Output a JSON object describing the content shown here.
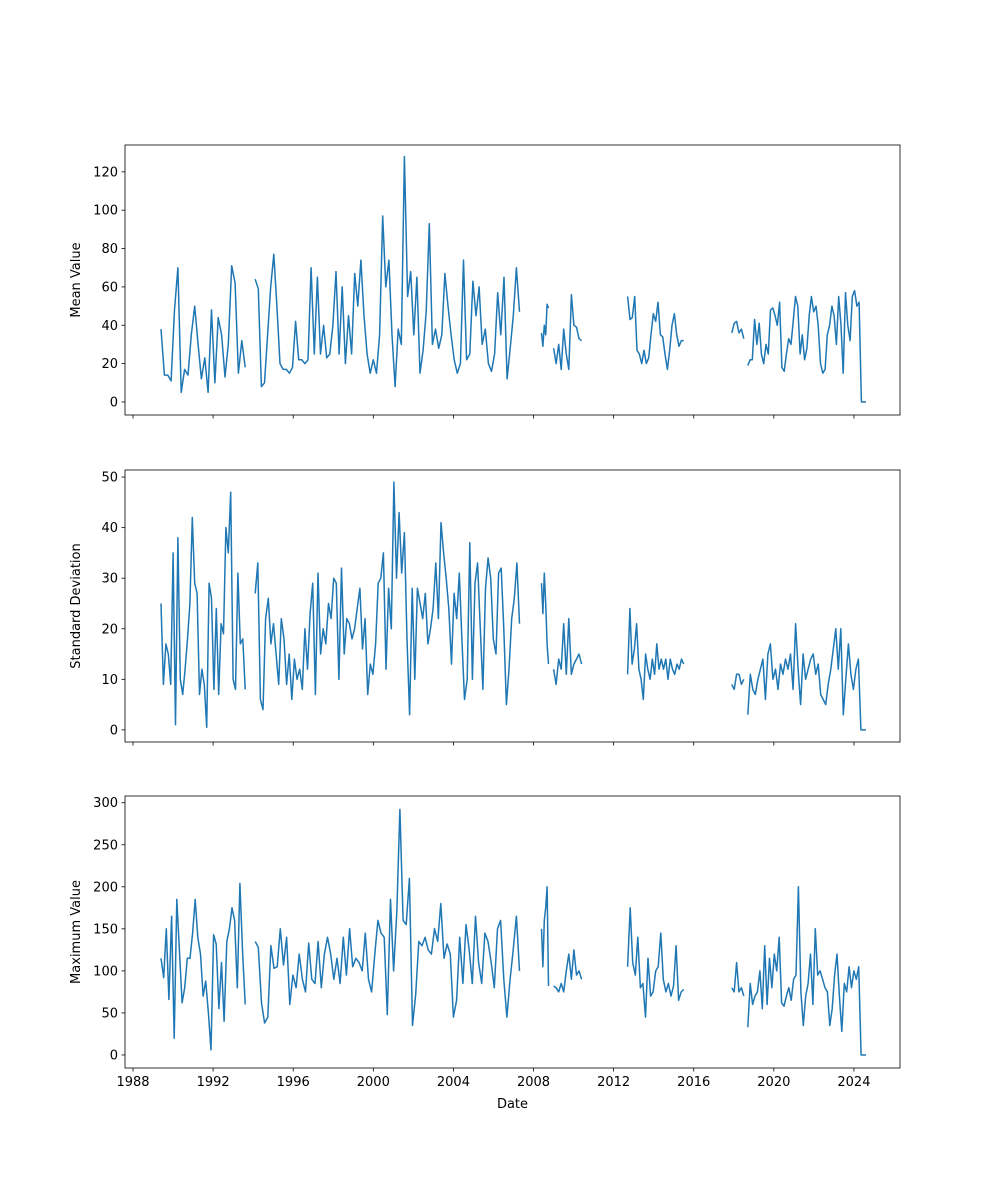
{
  "chart_data": [
    {
      "type": "line",
      "ylabel": "Mean Value",
      "xlabel": "",
      "ylim": [
        -6.8,
        134
      ],
      "xlim": [
        1987.6,
        2026.3
      ],
      "yticks": [
        0,
        20,
        40,
        60,
        80,
        100,
        120
      ],
      "color": "#1f77b4",
      "segments": [
        {
          "start": 1989.4,
          "end": 1993.6,
          "values": [
            38,
            14,
            14,
            11,
            48,
            70,
            5,
            17,
            14,
            35,
            50,
            30,
            12,
            23,
            5,
            48,
            10,
            44,
            35,
            13,
            30,
            71,
            62,
            15,
            32,
            18
          ]
        },
        {
          "start": 1994.1,
          "end": 2007.3,
          "values": [
            64,
            59,
            8,
            10,
            35,
            60,
            77,
            50,
            20,
            17,
            17,
            15,
            18,
            42,
            22,
            22,
            20,
            22,
            70,
            25,
            65,
            25,
            40,
            23,
            25,
            40,
            68,
            25,
            60,
            20,
            45,
            25,
            67,
            50,
            74,
            45,
            25,
            15,
            22,
            15,
            35,
            97,
            60,
            74,
            35,
            8,
            38,
            30,
            128,
            55,
            68,
            35,
            65,
            15,
            27,
            47,
            93,
            30,
            38,
            28,
            35,
            67,
            50,
            35,
            22,
            15,
            20,
            74,
            22,
            25,
            63,
            45,
            60,
            30,
            38,
            20,
            16,
            25,
            57,
            35,
            65,
            12,
            28,
            45,
            70,
            47
          ]
        },
        {
          "start": 2008.4,
          "end": 2008.75,
          "values": [
            36,
            29,
            40,
            35,
            51,
            49
          ]
        },
        {
          "start": 2009.0,
          "end": 2010.4,
          "values": [
            28,
            20,
            30,
            17,
            38,
            25,
            17,
            56,
            40,
            39,
            33,
            32
          ]
        },
        {
          "start": 2012.7,
          "end": 2015.5,
          "values": [
            55,
            43,
            44,
            55,
            27,
            25,
            20,
            27,
            20,
            23,
            35,
            46,
            42,
            52,
            35,
            34,
            25,
            17,
            27,
            40,
            46,
            35,
            29,
            32,
            32
          ]
        },
        {
          "start": 2017.9,
          "end": 2018.5,
          "values": [
            36,
            41,
            42,
            36,
            38,
            33
          ]
        },
        {
          "start": 2018.7,
          "end": 2024.6,
          "values": [
            19,
            22,
            22,
            43,
            30,
            41,
            25,
            20,
            30,
            25,
            48,
            49,
            45,
            40,
            52,
            18,
            16,
            25,
            33,
            30,
            42,
            55,
            50,
            25,
            35,
            22,
            28,
            45,
            55,
            47,
            50,
            40,
            20,
            15,
            17,
            35,
            40,
            50,
            45,
            30,
            55,
            40,
            15,
            57,
            40,
            32,
            55,
            58,
            50,
            52,
            0,
            0,
            0
          ]
        }
      ]
    },
    {
      "type": "line",
      "ylabel": "Standard Deviation",
      "xlabel": "",
      "ylim": [
        -2.4,
        51.4
      ],
      "xlim": [
        1987.6,
        2026.3
      ],
      "yticks": [
        0,
        10,
        20,
        30,
        40,
        50
      ],
      "color": "#1f77b4",
      "segments": [
        {
          "start": 1989.4,
          "end": 1993.6,
          "values": [
            25,
            9,
            17,
            15,
            9,
            35,
            1,
            38,
            10,
            7,
            12,
            18,
            25,
            42,
            29,
            27,
            7,
            12,
            9,
            0.5,
            29,
            26,
            8,
            24,
            7,
            21,
            19,
            40,
            35,
            47,
            10,
            8,
            31,
            17,
            18,
            8
          ]
        },
        {
          "start": 1994.1,
          "end": 2007.3,
          "values": [
            27,
            33,
            6,
            4,
            22,
            26,
            17,
            21,
            15,
            9,
            22,
            18,
            9,
            15,
            6,
            14,
            10,
            12,
            8,
            20,
            12,
            23,
            29,
            7,
            31,
            15,
            20,
            17,
            25,
            22,
            30,
            29,
            10,
            32,
            15,
            22,
            21,
            18,
            20,
            24,
            28,
            16,
            22,
            7,
            13,
            11,
            17,
            29,
            30,
            35,
            12,
            28,
            20,
            49,
            30,
            43,
            31,
            39,
            18,
            3,
            28,
            10,
            28,
            25,
            22,
            27,
            17,
            20,
            24,
            33,
            22,
            41,
            35,
            30,
            24,
            13,
            27,
            22,
            31,
            18,
            6,
            10,
            37,
            10,
            29,
            33,
            20,
            8,
            28,
            34,
            30,
            18,
            15,
            31,
            32,
            20,
            5,
            12,
            22,
            26,
            33,
            21
          ]
        },
        {
          "start": 2008.4,
          "end": 2008.75,
          "values": [
            29,
            23,
            31,
            25,
            17,
            13
          ]
        },
        {
          "start": 2009.0,
          "end": 2010.4,
          "values": [
            12,
            9,
            14,
            12,
            21,
            11,
            22,
            11,
            13,
            14,
            15,
            13
          ]
        },
        {
          "start": 2012.7,
          "end": 2015.5,
          "values": [
            11,
            24,
            13,
            16,
            21,
            12,
            10,
            6,
            15,
            12,
            10,
            14,
            11,
            17,
            12,
            14,
            12,
            14,
            10,
            14,
            12,
            11,
            13,
            12,
            14,
            13
          ]
        },
        {
          "start": 2017.9,
          "end": 2018.5,
          "values": [
            9,
            8,
            11,
            11,
            9,
            10
          ]
        },
        {
          "start": 2018.7,
          "end": 2024.6,
          "values": [
            3,
            11,
            8,
            7,
            10,
            12,
            14,
            6,
            15,
            17,
            10,
            12,
            8,
            13,
            11,
            14,
            12,
            15,
            8,
            21,
            12,
            5,
            15,
            10,
            12,
            14,
            15,
            11,
            13,
            7,
            6,
            5,
            9,
            12,
            16,
            20,
            12,
            20,
            3,
            10,
            17,
            11,
            8,
            12,
            14,
            0,
            0,
            0
          ]
        }
      ]
    },
    {
      "type": "line",
      "ylabel": "Maximum Value",
      "xlabel": "Date",
      "ylim": [
        -15.5,
        308
      ],
      "xlim": [
        1987.6,
        2026.3
      ],
      "yticks": [
        0,
        50,
        100,
        150,
        200,
        250,
        300
      ],
      "xticks": [
        1988,
        1992,
        1996,
        2000,
        2004,
        2008,
        2012,
        2016,
        2020,
        2024
      ],
      "color": "#1f77b4",
      "segments": [
        {
          "start": 1989.4,
          "end": 1993.6,
          "values": [
            115,
            92,
            150,
            66,
            165,
            20,
            185,
            125,
            62,
            80,
            115,
            115,
            145,
            185,
            140,
            120,
            70,
            88,
            50,
            6,
            143,
            132,
            55,
            110,
            40,
            135,
            150,
            175,
            160,
            80,
            204,
            125,
            60
          ]
        },
        {
          "start": 1994.1,
          "end": 2007.3,
          "values": [
            135,
            128,
            62,
            38,
            45,
            130,
            103,
            105,
            150,
            107,
            140,
            60,
            95,
            80,
            120,
            90,
            75,
            133,
            90,
            85,
            135,
            80,
            120,
            140,
            120,
            90,
            115,
            85,
            140,
            95,
            150,
            105,
            115,
            110,
            100,
            145,
            90,
            75,
            120,
            160,
            145,
            140,
            48,
            185,
            100,
            170,
            292,
            160,
            155,
            210,
            35,
            72,
            135,
            130,
            140,
            125,
            120,
            150,
            135,
            180,
            115,
            132,
            120,
            45,
            65,
            140,
            85,
            155,
            125,
            85,
            165,
            110,
            85,
            145,
            135,
            110,
            80,
            150,
            160,
            90,
            45,
            90,
            125,
            165,
            100
          ]
        },
        {
          "start": 2008.4,
          "end": 2008.75,
          "values": [
            150,
            105,
            160,
            175,
            200,
            82
          ]
        },
        {
          "start": 2009.0,
          "end": 2010.4,
          "values": [
            82,
            80,
            75,
            85,
            75,
            100,
            120,
            90,
            125,
            95,
            100,
            90
          ]
        },
        {
          "start": 2012.7,
          "end": 2015.5,
          "values": [
            105,
            175,
            110,
            95,
            140,
            80,
            85,
            45,
            115,
            70,
            75,
            100,
            105,
            145,
            90,
            75,
            85,
            70,
            82,
            130,
            65,
            75,
            78
          ]
        },
        {
          "start": 2017.9,
          "end": 2018.5,
          "values": [
            80,
            75,
            110,
            75,
            80,
            70
          ]
        },
        {
          "start": 2018.7,
          "end": 2024.6,
          "values": [
            33,
            85,
            60,
            70,
            75,
            100,
            55,
            130,
            60,
            115,
            80,
            120,
            100,
            140,
            62,
            58,
            70,
            80,
            65,
            90,
            95,
            200,
            75,
            35,
            70,
            85,
            120,
            60,
            150,
            95,
            100,
            90,
            80,
            75,
            35,
            55,
            95,
            120,
            70,
            28,
            85,
            75,
            105,
            80,
            100,
            90,
            105,
            0,
            0,
            0
          ]
        }
      ]
    }
  ]
}
